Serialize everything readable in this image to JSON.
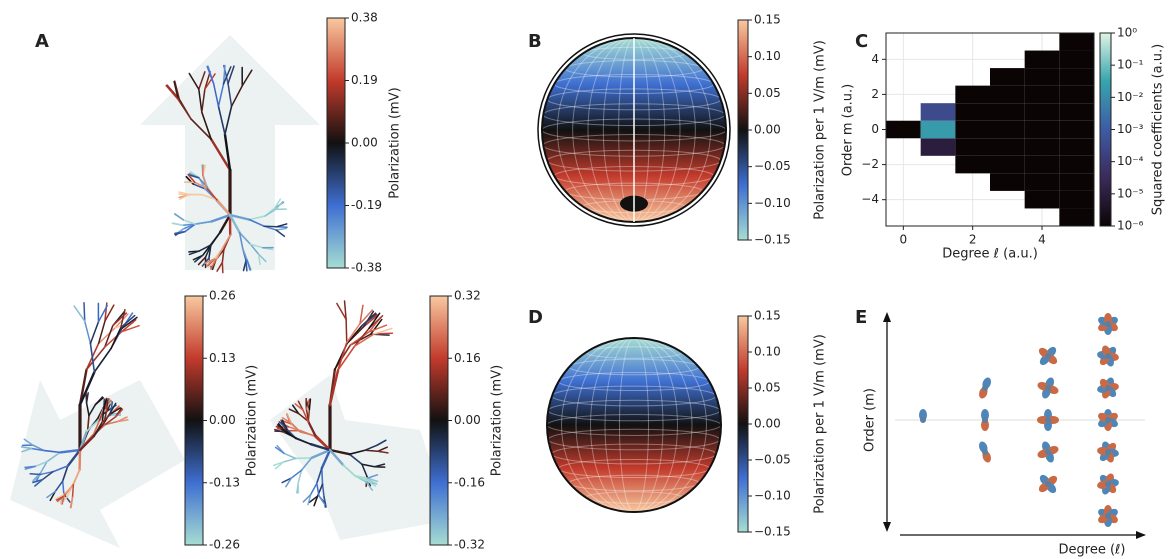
{
  "chart_data": [
    {
      "type": "colorbar",
      "panel": "A",
      "label": "Polarization (mV)",
      "ylim": [
        -0.38,
        0.38
      ],
      "yticks": [
        0.38,
        0.19,
        {
          "value": 0,
          "label": "0.00"
        },
        -0.19,
        -0.38
      ],
      "colormap": [
        "#a6ddd2",
        "#3f6fd1",
        "#111111",
        "#c23b2c",
        "#f8c9a0"
      ]
    },
    {
      "type": "colorbar",
      "label": "Polarization (mV)",
      "ylim": [
        -0.26,
        0.26
      ],
      "yticks": [
        0.26,
        0.13,
        {
          "value": 0,
          "label": "0.00"
        },
        -0.13,
        -0.26
      ],
      "colormap": [
        "#a6ddd2",
        "#3f6fd1",
        "#111111",
        "#c23b2c",
        "#f8c9a0"
      ]
    },
    {
      "type": "colorbar",
      "label": "Polarization (mV)",
      "ylim": [
        -0.32,
        0.32
      ],
      "yticks": [
        0.32,
        0.16,
        {
          "value": 0,
          "label": "0.00"
        },
        -0.16,
        -0.32
      ],
      "colormap": [
        "#a6ddd2",
        "#3f6fd1",
        "#111111",
        "#c23b2c",
        "#f8c9a0"
      ]
    },
    {
      "type": "sphere",
      "panel": "B",
      "label": "Polarization per 1 V/m (mV)",
      "ylim": [
        -0.15,
        0.15
      ],
      "yticks": [
        0.15,
        {
          "value": 0.1,
          "label": "0.10"
        },
        0.05,
        {
          "value": 0,
          "label": "0.00"
        },
        {
          "value": -0.05,
          "label": "−0.05"
        },
        {
          "value": -0.1,
          "label": "−0.10"
        },
        {
          "value": -0.15,
          "label": "−0.15"
        }
      ],
      "colormap": [
        "#a6ddd2",
        "#3f6fd1",
        "#111111",
        "#c23b2c",
        "#f8c9a0"
      ]
    },
    {
      "type": "heatmap",
      "panel": "C",
      "xlabel": "Degree ℓ (a.u.)",
      "ylabel": "Order m (a.u.)",
      "xlim": [
        -0.5,
        5.5
      ],
      "ylim": [
        -5.5,
        5.5
      ],
      "xticks": [
        0,
        2,
        4
      ],
      "yticks": [
        {
          "value": -4,
          "label": "−4"
        },
        {
          "value": -2,
          "label": "−2"
        },
        0,
        2,
        4
      ],
      "x": [
        0,
        1,
        1,
        1,
        2,
        2,
        2,
        2,
        2,
        3,
        3,
        3,
        3,
        3,
        3,
        3,
        4,
        4,
        4,
        4,
        4,
        4,
        4,
        4,
        4,
        5,
        5,
        5,
        5,
        5,
        5,
        5,
        5,
        5,
        5,
        5
      ],
      "y": [
        0,
        -1,
        0,
        1,
        -2,
        -1,
        0,
        1,
        2,
        -3,
        -2,
        -1,
        0,
        1,
        2,
        3,
        -4,
        -3,
        -2,
        -1,
        0,
        1,
        2,
        3,
        4,
        -5,
        -4,
        -3,
        -2,
        -1,
        0,
        1,
        2,
        3,
        4,
        5
      ],
      "values": [
        1e-06,
        1e-05,
        0.02,
        0.0003,
        1e-06,
        1e-06,
        1e-06,
        1e-06,
        1e-06,
        1e-06,
        1e-06,
        1e-06,
        1e-06,
        1e-06,
        1e-06,
        1e-06,
        1e-06,
        1e-06,
        1e-06,
        1e-06,
        1e-06,
        1e-06,
        1e-06,
        1e-06,
        1e-06,
        1e-06,
        1e-06,
        1e-06,
        1e-06,
        1e-06,
        1e-06,
        1e-06,
        1e-06,
        1e-06,
        1e-06,
        1e-06
      ],
      "colorbar": {
        "label": "Squared coefficients (a.u.)",
        "log": true,
        "ylim": [
          1e-06,
          1
        ],
        "yticks": [
          {
            "value": 1,
            "label": "10⁰"
          },
          {
            "value": 0.1,
            "label": "10⁻¹"
          },
          {
            "value": 0.01,
            "label": "10⁻²"
          },
          {
            "value": 0.001,
            "label": "10⁻³"
          },
          {
            "value": 0.0001,
            "label": "10⁻⁴"
          },
          {
            "value": 1e-05,
            "label": "10⁻⁵"
          },
          {
            "value": 1e-06,
            "label": "10⁻⁶"
          }
        ]
      },
      "colormap": [
        "#0b0405",
        "#3b2a5a",
        "#3e5ba6",
        "#36a5ad",
        "#dff4e4"
      ]
    },
    {
      "type": "sphere",
      "panel": "D",
      "label": "Polarization per 1 V/m (mV)",
      "ylim": [
        -0.15,
        0.15
      ],
      "yticks": [
        0.15,
        {
          "value": 0.1,
          "label": "0.10"
        },
        0.05,
        {
          "value": 0,
          "label": "0.00"
        },
        {
          "value": -0.05,
          "label": "−0.05"
        },
        {
          "value": -0.1,
          "label": "−0.10"
        },
        {
          "value": -0.15,
          "label": "−0.15"
        }
      ],
      "colormap": [
        "#a6ddd2",
        "#3f6fd1",
        "#111111",
        "#c23b2c",
        "#f8c9a0"
      ]
    },
    {
      "type": "harmonics",
      "panel": "E",
      "xlabel": "Degree (ℓ)",
      "ylabel": "Order (m)"
    }
  ]
}
